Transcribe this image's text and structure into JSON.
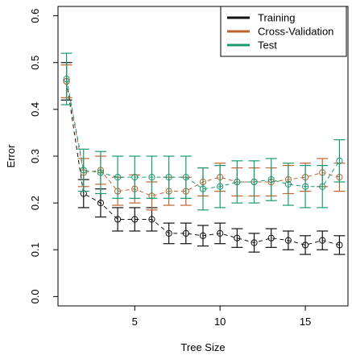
{
  "chart_data": {
    "type": "line",
    "title": "",
    "xlabel": "Tree Size",
    "ylabel": "Error",
    "xlim": [
      0.5,
      17.5
    ],
    "ylim": [
      -0.02,
      0.62
    ],
    "xticks": [
      5,
      10,
      15
    ],
    "xtick_labels": [
      "5",
      "10",
      "15"
    ],
    "yticks": [
      0.0,
      0.1,
      0.2,
      0.3,
      0.4,
      0.5,
      0.6
    ],
    "ytick_labels": [
      "0.0",
      "0.1",
      "0.2",
      "0.3",
      "0.4",
      "0.5",
      "0.6"
    ],
    "grid": false,
    "legend_position": "top-right",
    "x": [
      1,
      2,
      3,
      4,
      5,
      6,
      7,
      8,
      9,
      10,
      11,
      12,
      13,
      14,
      15,
      16,
      17
    ],
    "series": [
      {
        "name": "Training",
        "color": "#111111",
        "values": [
          0.46,
          0.22,
          0.2,
          0.165,
          0.165,
          0.165,
          0.135,
          0.135,
          0.13,
          0.135,
          0.125,
          0.115,
          0.125,
          0.12,
          0.11,
          0.12,
          0.11
        ],
        "errors": [
          0.04,
          0.03,
          0.03,
          0.025,
          0.025,
          0.025,
          0.022,
          0.022,
          0.022,
          0.022,
          0.02,
          0.02,
          0.02,
          0.02,
          0.02,
          0.02,
          0.02
        ]
      },
      {
        "name": "Cross-Validation",
        "color": "#c0632f",
        "values": [
          0.46,
          0.265,
          0.27,
          0.225,
          0.23,
          0.215,
          0.225,
          0.225,
          0.245,
          0.255,
          0.245,
          0.245,
          0.245,
          0.25,
          0.255,
          0.265,
          0.255
        ],
        "errors": [
          0.035,
          0.03,
          0.03,
          0.03,
          0.03,
          0.03,
          0.03,
          0.03,
          0.03,
          0.03,
          0.03,
          0.03,
          0.03,
          0.03,
          0.03,
          0.03,
          0.03
        ]
      },
      {
        "name": "Test",
        "color": "#1a9a72",
        "values": [
          0.465,
          0.27,
          0.265,
          0.255,
          0.255,
          0.255,
          0.255,
          0.255,
          0.23,
          0.235,
          0.245,
          0.245,
          0.25,
          0.24,
          0.235,
          0.235,
          0.29
        ],
        "errors": [
          0.055,
          0.045,
          0.045,
          0.045,
          0.045,
          0.045,
          0.045,
          0.045,
          0.045,
          0.045,
          0.045,
          0.045,
          0.045,
          0.045,
          0.045,
          0.045,
          0.045
        ]
      }
    ]
  }
}
